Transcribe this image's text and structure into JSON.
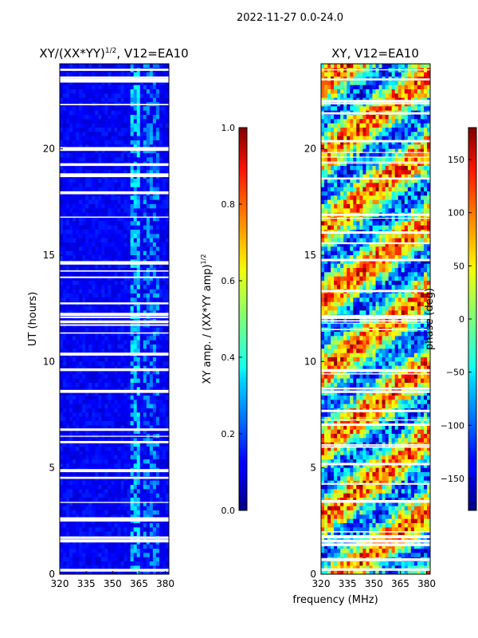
{
  "suptitle": "2022-11-27 0.0-24.0",
  "shared_xlabel": "frequency (MHz)",
  "chart_data": [
    {
      "type": "heatmap",
      "title": "XY/(XX*YY)",
      "title_sup": "1/2",
      "title_suffix": ", V12=EA10",
      "xlabel": "",
      "ylabel": "UT (hours)",
      "xlim": [
        320,
        382
      ],
      "ylim": [
        0,
        24
      ],
      "x_ticks": [
        320,
        335,
        350,
        365,
        380
      ],
      "y_ticks": [
        0,
        5,
        10,
        15,
        20
      ],
      "colorbar": {
        "label": "XY amp. / (XX*YY amp)",
        "label_sup": "1/2",
        "range": [
          0.0,
          1.0
        ],
        "ticks": [
          "0.0",
          "0.2",
          "0.4",
          "0.6",
          "0.8",
          "1.0"
        ],
        "colormap": "jet"
      }
    },
    {
      "type": "heatmap",
      "title": "XY, V12=EA10",
      "xlabel": "frequency (MHz)",
      "ylabel": "",
      "xlim": [
        320,
        382
      ],
      "ylim": [
        0,
        24
      ],
      "x_ticks": [
        320,
        335,
        350,
        365,
        380
      ],
      "y_ticks": [
        0,
        5,
        10,
        15,
        20
      ],
      "colorbar": {
        "label": "phase (deg)",
        "range": [
          -180,
          180
        ],
        "ticks": [
          "150",
          "100",
          "50",
          "0",
          "−50",
          "−100",
          "−150"
        ],
        "tick_values": [
          150,
          100,
          50,
          0,
          -50,
          -100,
          -150
        ],
        "colormap": "jet"
      }
    }
  ]
}
